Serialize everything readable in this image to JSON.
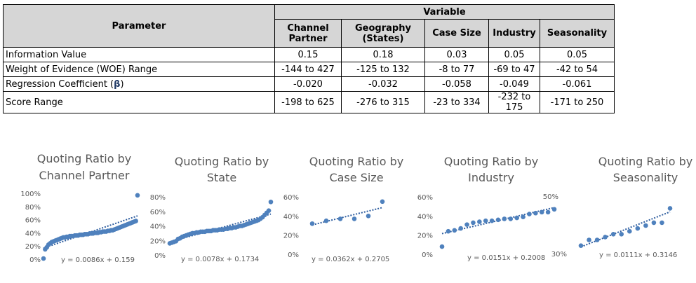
{
  "table": {
    "param_header": "Parameter",
    "variable_header": "Variable",
    "columns": [
      "Channel Partner",
      "Geography (States)",
      "Case Size",
      "Industry",
      "Seasonality"
    ],
    "rows": [
      {
        "label": "Information Value",
        "values": [
          "0.15",
          "0.18",
          "0.03",
          "0.05",
          "0.05"
        ]
      },
      {
        "label": "Weight of Evidence (WOE) Range",
        "values": [
          "-144 to 427",
          "-125 to 132",
          "-8 to 77",
          "-69 to 47",
          "-42 to 54"
        ]
      },
      {
        "label": "Regression Coefficient (",
        "beta": "β",
        "label_end": ")",
        "values": [
          "-0.020",
          "-0.032",
          "-0.058",
          "-0.049",
          "-0.061"
        ]
      },
      {
        "label": "Score Range",
        "values": [
          "-198 to 625",
          "-276 to 315",
          "-23 to 334",
          "-232 to 175",
          "-171 to 250"
        ]
      }
    ]
  },
  "colors": {
    "point": "#4f81bd",
    "trend": "#2e5d9f",
    "header_bg": "#d6d6d6",
    "text": "#595959"
  },
  "chart_data": [
    {
      "type": "scatter",
      "title": [
        "Quoting Ratio by",
        "Channel Partner"
      ],
      "ylim": [
        0,
        1
      ],
      "yticks": [
        "0%",
        "20%",
        "40%",
        "60%",
        "80%",
        "100%"
      ],
      "trendline": {
        "slope": 0.0086,
        "intercept": 0.159,
        "label": "y = 0.0086x + 0.159"
      },
      "x": [
        1,
        2,
        3,
        4,
        5,
        6,
        7,
        8,
        9,
        10,
        11,
        12,
        13,
        14,
        15,
        16,
        17,
        18,
        19,
        20,
        21,
        22,
        23,
        24,
        25,
        26,
        27,
        28,
        29,
        30,
        31,
        32,
        33,
        34,
        35,
        36,
        37,
        38,
        39,
        40,
        41,
        42,
        43,
        44,
        45,
        46,
        47,
        48,
        49,
        50,
        51,
        52,
        53,
        54,
        55,
        56,
        57,
        58
      ],
      "y": [
        0.01,
        0.15,
        0.18,
        0.22,
        0.24,
        0.26,
        0.27,
        0.28,
        0.29,
        0.3,
        0.31,
        0.32,
        0.33,
        0.33,
        0.34,
        0.34,
        0.35,
        0.35,
        0.35,
        0.36,
        0.36,
        0.36,
        0.37,
        0.37,
        0.37,
        0.38,
        0.38,
        0.38,
        0.39,
        0.39,
        0.39,
        0.4,
        0.4,
        0.4,
        0.41,
        0.41,
        0.42,
        0.42,
        0.42,
        0.43,
        0.43,
        0.44,
        0.44,
        0.45,
        0.46,
        0.47,
        0.48,
        0.49,
        0.5,
        0.51,
        0.52,
        0.53,
        0.54,
        0.55,
        0.56,
        0.57,
        0.58,
        0.97
      ]
    },
    {
      "type": "scatter",
      "title": [
        "Quoting Ratio by",
        "State"
      ],
      "ylim": [
        0,
        0.8
      ],
      "yticks": [
        "0%",
        "20%",
        "40%",
        "60%",
        "80%"
      ],
      "trendline": {
        "slope": 0.0078,
        "intercept": 0.1734,
        "label": "y = 0.0078x + 0.1734"
      },
      "x": [
        1,
        2,
        3,
        4,
        5,
        6,
        7,
        8,
        9,
        10,
        11,
        12,
        13,
        14,
        15,
        16,
        17,
        18,
        19,
        20,
        21,
        22,
        23,
        24,
        25,
        26,
        27,
        28,
        29,
        30,
        31,
        32,
        33,
        34,
        35,
        36,
        37,
        38,
        39,
        40,
        41,
        42,
        43,
        44,
        45,
        46,
        47,
        48,
        49,
        50
      ],
      "y": [
        0.16,
        0.17,
        0.18,
        0.19,
        0.22,
        0.23,
        0.25,
        0.26,
        0.27,
        0.28,
        0.29,
        0.3,
        0.3,
        0.31,
        0.31,
        0.32,
        0.32,
        0.32,
        0.33,
        0.33,
        0.33,
        0.34,
        0.34,
        0.34,
        0.35,
        0.35,
        0.35,
        0.36,
        0.36,
        0.37,
        0.37,
        0.38,
        0.38,
        0.39,
        0.4,
        0.4,
        0.41,
        0.42,
        0.43,
        0.44,
        0.45,
        0.46,
        0.47,
        0.48,
        0.5,
        0.52,
        0.55,
        0.58,
        0.61,
        0.73
      ]
    },
    {
      "type": "scatter",
      "title": [
        "Quoting Ratio by",
        "Case Size"
      ],
      "ylim": [
        0,
        0.6
      ],
      "yticks": [
        "0%",
        "20%",
        "40%",
        "60%"
      ],
      "trendline": {
        "slope": 0.0362,
        "intercept": 0.2705,
        "label": "y = 0.0362x + 0.2705"
      },
      "x": [
        1,
        2,
        3,
        4,
        5,
        6
      ],
      "y": [
        0.32,
        0.35,
        0.37,
        0.37,
        0.4,
        0.55
      ]
    },
    {
      "type": "scatter",
      "title": [
        "Quoting Ratio by",
        "Industry"
      ],
      "ylim": [
        0,
        0.6
      ],
      "yticks": [
        "0%",
        "20%",
        "40%",
        "60%"
      ],
      "trendline": {
        "slope": 0.0151,
        "intercept": 0.2008,
        "label": "y = 0.0151x + 0.2008"
      },
      "x": [
        1,
        2,
        3,
        4,
        5,
        6,
        7,
        8,
        9,
        10,
        11,
        12,
        13,
        14,
        15,
        16,
        17,
        18,
        19
      ],
      "y": [
        0.08,
        0.24,
        0.25,
        0.27,
        0.31,
        0.33,
        0.34,
        0.35,
        0.35,
        0.36,
        0.37,
        0.37,
        0.38,
        0.39,
        0.42,
        0.43,
        0.44,
        0.44,
        0.47
      ]
    },
    {
      "type": "scatter",
      "title": [
        "Quoting Ratio by",
        "Seasonality"
      ],
      "ylim": [
        0.3,
        0.5
      ],
      "yticks": [
        "30%",
        "50%"
      ],
      "trendline": {
        "slope": 0.0111,
        "intercept": 0.3146,
        "label": "y = 0.0111x + 0.3146"
      },
      "x": [
        1,
        2,
        3,
        4,
        5,
        6,
        7,
        8,
        9,
        10,
        11,
        12
      ],
      "y": [
        0.33,
        0.35,
        0.35,
        0.36,
        0.37,
        0.37,
        0.38,
        0.39,
        0.4,
        0.41,
        0.41,
        0.46
      ]
    }
  ]
}
